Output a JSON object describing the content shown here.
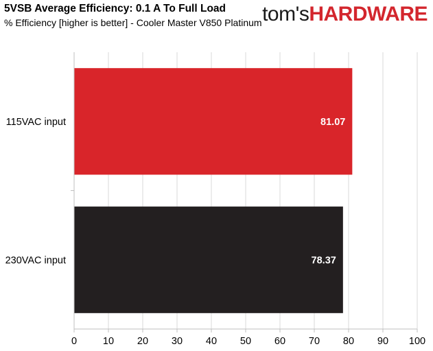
{
  "header": {
    "title": "5VSB Average Efficiency: 0.1 A To Full Load",
    "subtitle": "% Efficiency [higher is better] - Cooler Master V850 Platinum"
  },
  "logo": {
    "part1": "tom's",
    "part2": "HARDWARE"
  },
  "colors": {
    "series_115": "#d9252a",
    "series_230": "#231f20",
    "grid": "#d9d9d9",
    "axis": "#bfbfbf"
  },
  "chart_data": {
    "type": "bar",
    "orientation": "horizontal",
    "title": "5VSB Average Efficiency: 0.1 A To Full Load",
    "subtitle": "% Efficiency [higher is better] - Cooler Master V850 Platinum",
    "categories": [
      "115VAC input",
      "230VAC input"
    ],
    "values": [
      81.07,
      78.37
    ],
    "value_labels": [
      "81.07",
      "78.37"
    ],
    "xlim": [
      0,
      100
    ],
    "xticks": [
      0,
      10,
      20,
      30,
      40,
      50,
      60,
      70,
      80,
      90,
      100
    ],
    "xtick_labels": [
      "0",
      "10",
      "20",
      "30",
      "40",
      "50",
      "60",
      "70",
      "80",
      "90",
      "100"
    ],
    "grid": true
  }
}
